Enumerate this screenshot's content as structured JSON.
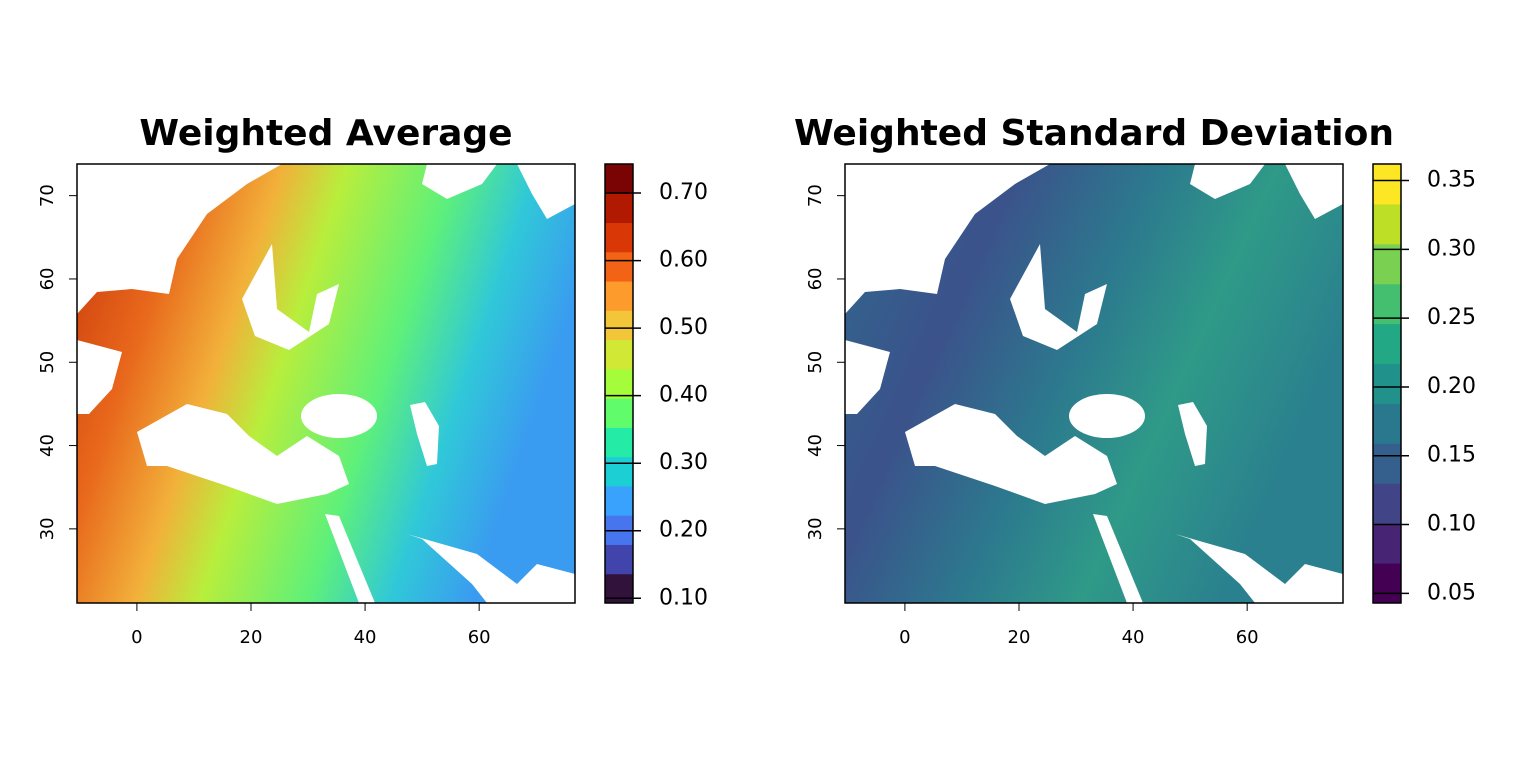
{
  "chart_data": [
    {
      "type": "raster",
      "title": "Weighted Average",
      "xlim": [
        -10.5,
        76.8
      ],
      "ylim": [
        21.1,
        73.8
      ],
      "xticks": [
        0,
        20,
        40,
        60
      ],
      "yticks": [
        30,
        40,
        50,
        60,
        70
      ],
      "colorbar": {
        "lim": [
          0.093,
          0.743
        ],
        "ticks": [
          {
            "value": 0.1,
            "label": "0.10"
          },
          {
            "value": 0.2,
            "label": "0.20"
          },
          {
            "value": 0.3,
            "label": "0.30"
          },
          {
            "value": 0.4,
            "label": "0.40"
          },
          {
            "value": 0.5,
            "label": "0.50"
          },
          {
            "value": 0.6,
            "label": "0.60"
          },
          {
            "value": 0.7,
            "label": "0.70"
          }
        ],
        "colors": [
          "#30123b",
          "#4145ab",
          "#4675ed",
          "#39a2fc",
          "#1bcfd4",
          "#24eca6",
          "#61fc6c",
          "#a4fc3b",
          "#d1e834",
          "#f3c63a",
          "#fe9b2d",
          "#f36315",
          "#d93806",
          "#b11901",
          "#7a0403"
        ]
      }
    },
    {
      "type": "raster",
      "title": "Weighted Standard Deviation",
      "xlim": [
        -10.5,
        76.8
      ],
      "ylim": [
        21.1,
        73.8
      ],
      "xticks": [
        0,
        20,
        40,
        60
      ],
      "yticks": [
        30,
        40,
        50,
        60,
        70
      ],
      "colorbar": {
        "lim": [
          0.043,
          0.362
        ],
        "ticks": [
          0.05,
          {
            "value": 0.1,
            "label": "0.10"
          },
          0.15,
          {
            "value": 0.2,
            "label": "0.20"
          },
          0.25,
          {
            "value": 0.3,
            "label": "0.30"
          },
          0.35
        ],
        "colors": [
          "#440154",
          "#482475",
          "#414487",
          "#355f8d",
          "#2a788e",
          "#21918c",
          "#22a884",
          "#44bf70",
          "#7ad151",
          "#bddf26",
          "#fde725"
        ]
      }
    }
  ]
}
